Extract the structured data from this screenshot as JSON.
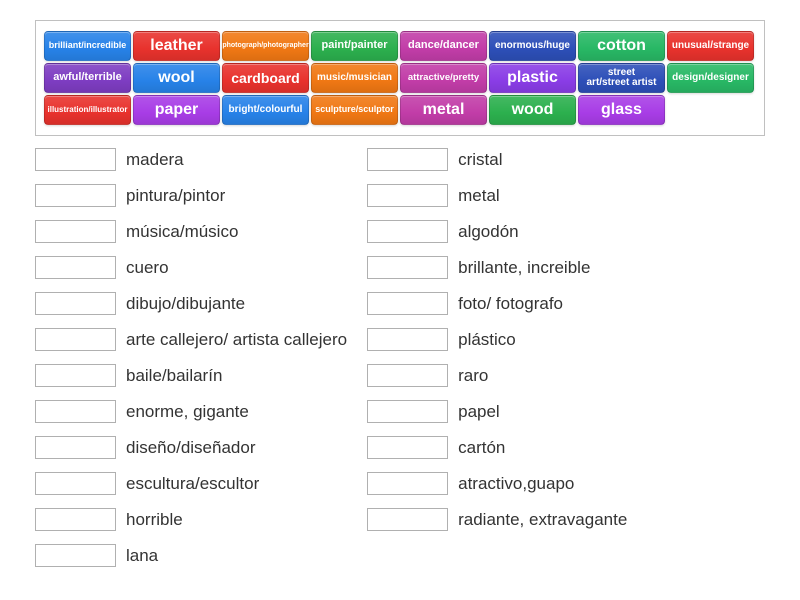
{
  "tiles": [
    {
      "label": "brilliant/incredible",
      "bg": "#2782e8",
      "fontsize": 9
    },
    {
      "label": "leather",
      "bg": "#e8322d",
      "fontsize": 16
    },
    {
      "label": "photograph/photographer",
      "bg": "#f07814",
      "fontsize": 7
    },
    {
      "label": "paint/painter",
      "bg": "#2cb04e",
      "fontsize": 11
    },
    {
      "label": "dance/dancer",
      "bg": "#c23da8",
      "fontsize": 11
    },
    {
      "label": "enormous/huge",
      "bg": "#2d4fb8",
      "fontsize": 10
    },
    {
      "label": "cotton",
      "bg": "#28b865",
      "fontsize": 16
    },
    {
      "label": "unusual/strange",
      "bg": "#e8322d",
      "fontsize": 10
    },
    {
      "label": "awful/terrible",
      "bg": "#7e3dc2",
      "fontsize": 11
    },
    {
      "label": "wool",
      "bg": "#2782e8",
      "fontsize": 16
    },
    {
      "label": "cardboard",
      "bg": "#e8322d",
      "fontsize": 14
    },
    {
      "label": "music/musician",
      "bg": "#f07814",
      "fontsize": 10
    },
    {
      "label": "attractive/pretty",
      "bg": "#c23da8",
      "fontsize": 9.5
    },
    {
      "label": "plastic",
      "bg": "#8a3de6",
      "fontsize": 16
    },
    {
      "label": "street art/street artist",
      "bg": "#2d4fb8",
      "fontsize": 10,
      "multiline": true
    },
    {
      "label": "design/designer",
      "bg": "#28b865",
      "fontsize": 10
    },
    {
      "label": "illustration/illustrator",
      "bg": "#e8322d",
      "fontsize": 8
    },
    {
      "label": "paper",
      "bg": "#a83de6",
      "fontsize": 16
    },
    {
      "label": "bright/colourful",
      "bg": "#2782e8",
      "fontsize": 10
    },
    {
      "label": "sculpture/sculptor",
      "bg": "#f07814",
      "fontsize": 9
    },
    {
      "label": "metal",
      "bg": "#c23da8",
      "fontsize": 16
    },
    {
      "label": "wood",
      "bg": "#2cb04e",
      "fontsize": 16
    },
    {
      "label": "glass",
      "bg": "#a83de6",
      "fontsize": 16
    }
  ],
  "left_col": [
    "madera",
    "pintura/pintor",
    "música/músico",
    "cuero",
    "dibujo/dibujante",
    "arte callejero/ artista callejero",
    "baile/bailarín",
    "enorme, gigante",
    "diseño/diseñador",
    "escultura/escultor",
    "horrible",
    "lana"
  ],
  "right_col": [
    "cristal",
    "metal",
    "algodón",
    "brillante, increible",
    "foto/ fotografo",
    "plástico",
    "raro",
    "papel",
    "cartón",
    "atractivo,guapo",
    "radiante, extravagante"
  ]
}
